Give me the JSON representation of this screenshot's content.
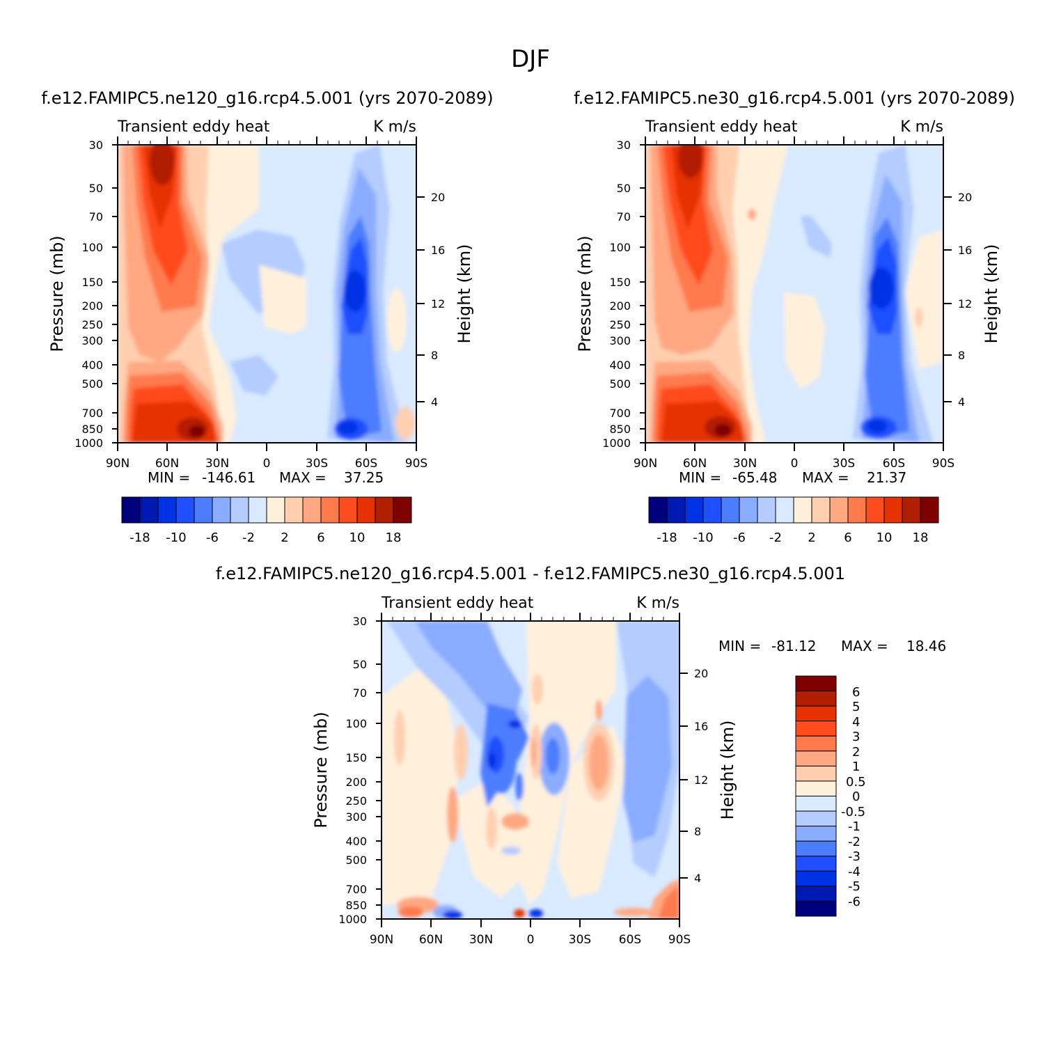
{
  "figure_title": "DJF",
  "colors": {
    "abs_scale": [
      "#00007f",
      "#0019b2",
      "#0032e5",
      "#1f4fff",
      "#4d7dff",
      "#8aacff",
      "#b4ccff",
      "#d9eaff",
      "#fff0dc",
      "#ffcfb0",
      "#ffa882",
      "#ff7a4d",
      "#ff4c1f",
      "#e53200",
      "#b21e00",
      "#7f0000"
    ],
    "diff_scale": [
      "#00007f",
      "#0019b2",
      "#0032e5",
      "#1f4fff",
      "#4d7dff",
      "#8aacff",
      "#b4ccff",
      "#d9eaff",
      "#fff0dc",
      "#ffcfb0",
      "#ffa882",
      "#ff7a4d",
      "#ff4c1f",
      "#e53200",
      "#b21e00",
      "#7f0000"
    ]
  },
  "chart_data": [
    {
      "type": "heatmap",
      "title": "f.e12.FAMIPC5.ne120_g16.rcp4.5.001 (yrs 2070-2089)",
      "left_label": "Transient eddy heat",
      "right_label": "K m/s",
      "ylabel": "Pressure (mb)",
      "ylabel_right": "Height (km)",
      "x_ticks": [
        "90N",
        "60N",
        "30N",
        "0",
        "30S",
        "60S",
        "90S"
      ],
      "y_ticks": [
        "30",
        "50",
        "70",
        "100",
        "150",
        "200",
        "250",
        "300",
        "400",
        "500",
        "700",
        "850",
        "1000"
      ],
      "y_ticks_right": [
        "20",
        "16",
        "12",
        "8",
        "4"
      ],
      "min_label": "MIN =",
      "min_value": "-146.61",
      "max_label": "MAX =",
      "max_value": "37.25",
      "colorbar_labels": [
        "-18",
        "-10",
        "-6",
        "-2",
        "2",
        "6",
        "10",
        "18"
      ]
    },
    {
      "type": "heatmap",
      "title": "f.e12.FAMIPC5.ne30_g16.rcp4.5.001 (yrs 2070-2089)",
      "left_label": "Transient eddy heat",
      "right_label": "K m/s",
      "ylabel": "Pressure (mb)",
      "ylabel_right": "Height (km)",
      "x_ticks": [
        "90N",
        "60N",
        "30N",
        "0",
        "30S",
        "60S",
        "90S"
      ],
      "y_ticks": [
        "30",
        "50",
        "70",
        "100",
        "150",
        "200",
        "250",
        "300",
        "400",
        "500",
        "700",
        "850",
        "1000"
      ],
      "y_ticks_right": [
        "20",
        "16",
        "12",
        "8",
        "4"
      ],
      "min_label": "MIN =",
      "min_value": "-65.48",
      "max_label": "MAX =",
      "max_value": "21.37",
      "colorbar_labels": [
        "-18",
        "-10",
        "-6",
        "-2",
        "2",
        "6",
        "10",
        "18"
      ]
    },
    {
      "type": "heatmap",
      "title": "f.e12.FAMIPC5.ne120_g16.rcp4.5.001 - f.e12.FAMIPC5.ne30_g16.rcp4.5.001",
      "left_label": "Transient eddy heat",
      "right_label": "K m/s",
      "ylabel": "Pressure (mb)",
      "ylabel_right": "Height (km)",
      "x_ticks": [
        "90N",
        "60N",
        "30N",
        "0",
        "30S",
        "60S",
        "90S"
      ],
      "y_ticks": [
        "30",
        "50",
        "70",
        "100",
        "150",
        "200",
        "250",
        "300",
        "400",
        "500",
        "700",
        "850",
        "1000"
      ],
      "y_ticks_right": [
        "20",
        "16",
        "12",
        "8",
        "4"
      ],
      "min_label": "MIN =",
      "min_value": "-81.12",
      "max_label": "MAX =",
      "max_value": "18.46",
      "colorbar_labels": [
        "6",
        "5",
        "4",
        "3",
        "2",
        "1",
        "0.5",
        "0",
        "-0.5",
        "-1",
        "-2",
        "-3",
        "-4",
        "-5",
        "-6"
      ]
    }
  ]
}
